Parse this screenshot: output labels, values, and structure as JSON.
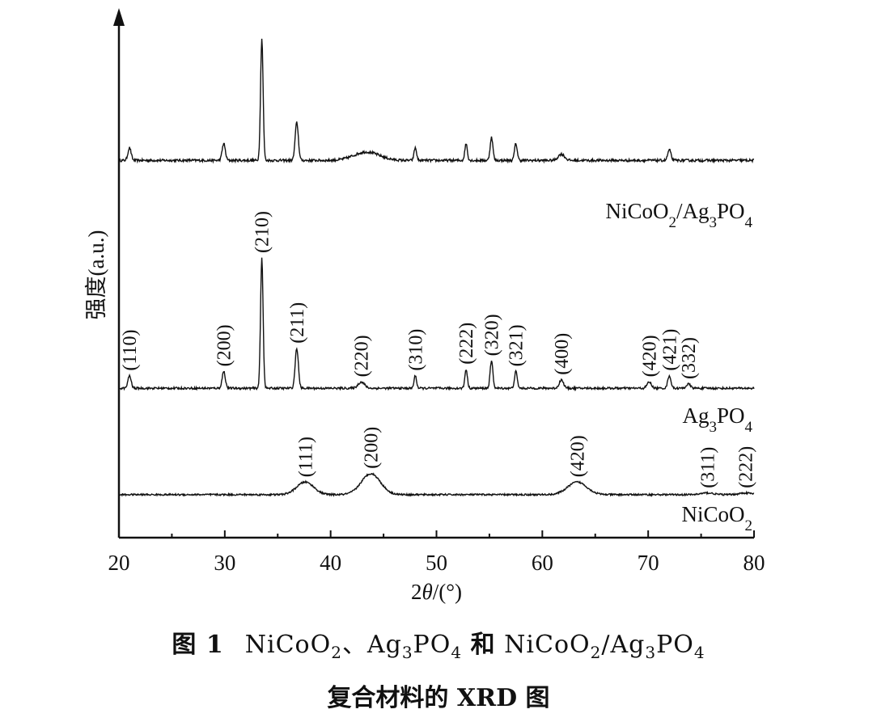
{
  "chart_data": {
    "type": "line",
    "xlabel": "2θ/(°)",
    "ylabel": "强度(a.u.)",
    "xlim": [
      20,
      80
    ],
    "x_ticks": [
      "20",
      "30",
      "40",
      "50",
      "60",
      "70",
      "80"
    ],
    "grid": false,
    "series": [
      {
        "name": "NiCoO2/Ag3PO4",
        "label_html": "NiCoO<tspan baseline-shift='sub' font-size='19'>2</tspan>/Ag<tspan baseline-shift='sub' font-size='19'>3</tspan>PO<tspan baseline-shift='sub' font-size='19'>4</tspan>",
        "baseline": 0.06,
        "noise": 0.012,
        "peaks": [
          {
            "x": 21.0,
            "h": 0.06,
            "w": 0.15
          },
          {
            "x": 29.9,
            "h": 0.08,
            "w": 0.15
          },
          {
            "x": 33.5,
            "h": 0.58,
            "w": 0.12
          },
          {
            "x": 36.8,
            "h": 0.18,
            "w": 0.15
          },
          {
            "x": 43.4,
            "h": 0.04,
            "w": 1.2
          },
          {
            "x": 48.0,
            "h": 0.06,
            "w": 0.12
          },
          {
            "x": 52.8,
            "h": 0.08,
            "w": 0.12
          },
          {
            "x": 55.2,
            "h": 0.11,
            "w": 0.13
          },
          {
            "x": 57.5,
            "h": 0.08,
            "w": 0.13
          },
          {
            "x": 61.8,
            "h": 0.03,
            "w": 0.3
          },
          {
            "x": 72.0,
            "h": 0.05,
            "w": 0.15
          }
        ]
      },
      {
        "name": "Ag3PO4",
        "label_html": "Ag<tspan baseline-shift='sub' font-size='19'>3</tspan>PO<tspan baseline-shift='sub' font-size='19'>4</tspan>",
        "baseline": 0.03,
        "noise": 0.01,
        "peaks": [
          {
            "x": 21.0,
            "h": 0.06,
            "w": 0.15
          },
          {
            "x": 29.9,
            "h": 0.08,
            "w": 0.15
          },
          {
            "x": 33.5,
            "h": 0.62,
            "w": 0.12
          },
          {
            "x": 36.8,
            "h": 0.19,
            "w": 0.15
          },
          {
            "x": 42.9,
            "h": 0.03,
            "w": 0.3
          },
          {
            "x": 48.0,
            "h": 0.06,
            "w": 0.12
          },
          {
            "x": 52.8,
            "h": 0.09,
            "w": 0.12
          },
          {
            "x": 55.2,
            "h": 0.13,
            "w": 0.13
          },
          {
            "x": 57.5,
            "h": 0.08,
            "w": 0.13
          },
          {
            "x": 61.8,
            "h": 0.04,
            "w": 0.2
          },
          {
            "x": 70.1,
            "h": 0.03,
            "w": 0.2
          },
          {
            "x": 72.0,
            "h": 0.06,
            "w": 0.15
          },
          {
            "x": 73.8,
            "h": 0.02,
            "w": 0.2
          }
        ],
        "hkl": [
          {
            "x": 21.0,
            "label": "(110)"
          },
          {
            "x": 29.9,
            "label": "(200)"
          },
          {
            "x": 33.5,
            "label": "(210)"
          },
          {
            "x": 36.8,
            "label": "(211)"
          },
          {
            "x": 42.9,
            "label": "(220)"
          },
          {
            "x": 48.0,
            "label": "(310)"
          },
          {
            "x": 52.8,
            "label": "(222)"
          },
          {
            "x": 55.2,
            "label": "(320)"
          },
          {
            "x": 57.5,
            "label": "(321)"
          },
          {
            "x": 61.8,
            "label": "(400)"
          },
          {
            "x": 70.1,
            "label": "(420)"
          },
          {
            "x": 72.0,
            "label": "(421)"
          },
          {
            "x": 73.8,
            "label": "(332)"
          }
        ]
      },
      {
        "name": "NiCoO2",
        "label_html": "NiCoO<tspan baseline-shift='sub' font-size='19'>2</tspan>",
        "baseline": 0.02,
        "noise": 0.008,
        "peaks": [
          {
            "x": 37.6,
            "h": 0.06,
            "w": 0.8
          },
          {
            "x": 43.8,
            "h": 0.1,
            "w": 0.9
          },
          {
            "x": 63.3,
            "h": 0.06,
            "w": 0.9
          },
          {
            "x": 75.6,
            "h": 0.008,
            "w": 0.6
          },
          {
            "x": 79.2,
            "h": 0.008,
            "w": 0.6
          }
        ],
        "hkl": [
          {
            "x": 37.6,
            "label": "(111)"
          },
          {
            "x": 43.8,
            "label": "(200)"
          },
          {
            "x": 63.3,
            "label": "(420)"
          },
          {
            "x": 75.6,
            "label": "(311)"
          },
          {
            "x": 79.2,
            "label": "(222)"
          }
        ]
      }
    ]
  },
  "caption": {
    "figure_number": "图 1",
    "line1_html": "NiCoO<sub style='font-size:20px'>2</sub>、Ag<sub style='font-size:20px'>3</sub>PO<sub style='font-size:20px'>4</sub> <span class='cap-bold'>和</span> NiCoO<sub style='font-size:20px'>2</sub>/Ag<sub style='font-size:20px'>3</sub>PO<sub style='font-size:20px'>4</sub>",
    "line2": "复合材料的 XRD 图"
  }
}
